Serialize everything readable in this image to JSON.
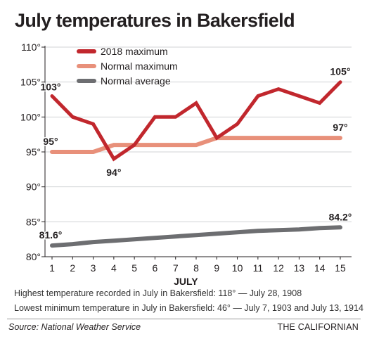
{
  "title": "July temperatures in Bakersfield",
  "notes": {
    "highest": "Highest temperature recorded in July in Bakersfield: 118° — July 28, 1908",
    "lowest": "Lowest minimum temperature in July in Bakersfield: 46° — July 7, 1903 and July 13, 1914"
  },
  "footer": {
    "source": "Source: National Weather Service",
    "credit": "THE CALIFORNIAN"
  },
  "colors": {
    "max2018": "#c1272d",
    "normal_max": "#e8907a",
    "normal_avg": "#6d6e71",
    "grid": "#d1d3d4",
    "axis": "#231f20"
  },
  "chart_data": {
    "type": "line",
    "title": "July temperatures in Bakersfield",
    "xlabel": "JULY",
    "ylabel": "",
    "x": [
      1,
      2,
      3,
      4,
      5,
      6,
      7,
      8,
      9,
      10,
      11,
      12,
      13,
      14,
      15
    ],
    "xlim": [
      1,
      15
    ],
    "ylim": [
      80,
      110
    ],
    "yticks": [
      80,
      85,
      90,
      95,
      100,
      105,
      110
    ],
    "ytick_labels": [
      "80°",
      "85°",
      "90°",
      "95°",
      "100°",
      "105°",
      "110°"
    ],
    "grid": true,
    "legend_position": "top-left",
    "series": [
      {
        "name": "2018 maximum",
        "color": "#c1272d",
        "values": [
          103,
          100,
          99,
          94,
          96,
          100,
          100,
          102,
          97,
          99,
          103,
          104,
          103,
          102,
          105
        ]
      },
      {
        "name": "Normal maximum",
        "color": "#e8907a",
        "values": [
          95,
          95,
          95,
          96,
          96,
          96,
          96,
          96,
          97,
          97,
          97,
          97,
          97,
          97,
          97
        ]
      },
      {
        "name": "Normal average",
        "color": "#6d6e71",
        "values": [
          81.6,
          81.8,
          82.1,
          82.3,
          82.5,
          82.7,
          82.9,
          83.1,
          83.3,
          83.5,
          83.7,
          83.8,
          83.9,
          84.1,
          84.2
        ]
      }
    ],
    "annotations": [
      {
        "series": 0,
        "x": 1,
        "text": "103°",
        "pos": "above"
      },
      {
        "series": 0,
        "x": 4,
        "text": "94°",
        "pos": "below"
      },
      {
        "series": 0,
        "x": 15,
        "text": "105°",
        "pos": "above"
      },
      {
        "series": 1,
        "x": 1,
        "text": "95°",
        "pos": "above"
      },
      {
        "series": 1,
        "x": 15,
        "text": "97°",
        "pos": "above"
      },
      {
        "series": 2,
        "x": 1,
        "text": "81.6°",
        "pos": "above"
      },
      {
        "series": 2,
        "x": 15,
        "text": "84.2°",
        "pos": "above"
      }
    ]
  }
}
